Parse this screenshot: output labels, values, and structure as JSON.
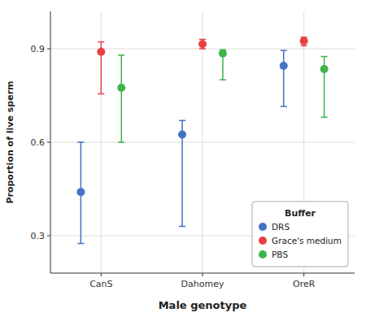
{
  "chart_data": {
    "type": "errorbar",
    "xlabel": "Male genotype",
    "ylabel": "Proportion of live sperm",
    "categories": [
      "CanS",
      "Dahomey",
      "OreR"
    ],
    "series": [
      {
        "name": "DRS",
        "color": "#4472C4",
        "marker": "circle",
        "values": [
          0.44,
          0.625,
          0.845
        ],
        "err_lower": [
          0.165,
          0.295,
          0.13
        ],
        "err_upper": [
          0.16,
          0.045,
          0.05
        ]
      },
      {
        "name": "Grace's medium",
        "color": "#E84040",
        "marker": "circle",
        "values": [
          0.89,
          0.915,
          0.925
        ],
        "err_lower": [
          0.135,
          0.015,
          0.015
        ],
        "err_upper": [
          0.032,
          0.015,
          0.012
        ]
      },
      {
        "name": "PBS",
        "color": "#3DB54A",
        "marker": "circle",
        "values": [
          0.775,
          0.885,
          0.835
        ],
        "err_lower": [
          0.175,
          0.085,
          0.155
        ],
        "err_upper": [
          0.105,
          0.012,
          0.04
        ]
      }
    ],
    "ylim": [
      0.18,
      1.02
    ],
    "yticks": [
      0.3,
      0.6,
      0.9
    ],
    "grid": true,
    "legend": "lower right",
    "legend_title": "Buffer"
  }
}
